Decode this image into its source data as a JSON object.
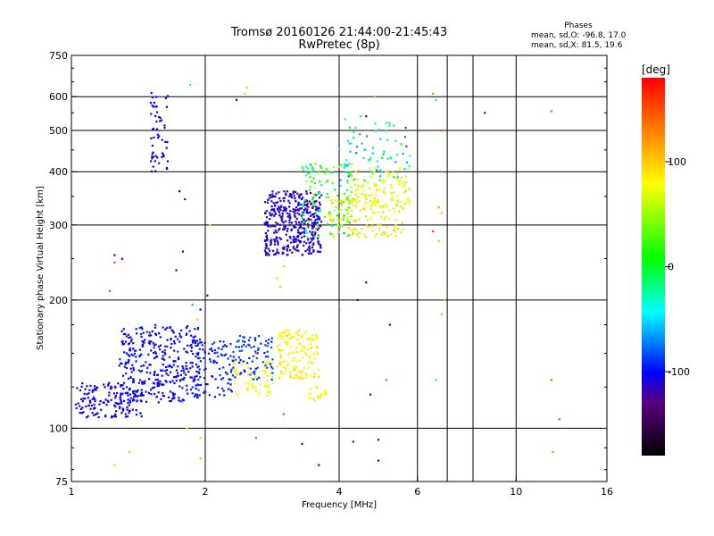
{
  "title_line1": "Tromsø 20160126 21:44:00-21:45:43",
  "title_line2": "RwPretec (8p)",
  "stats": {
    "header": "Phases",
    "line1": "mean, sd,O: -96.8, 17.0",
    "line2": "mean, sd,X:  81.5, 19.6"
  },
  "colorbar": {
    "label": "[deg]",
    "ticks": [
      {
        "value": 100,
        "label": "100"
      },
      {
        "value": 0,
        "label": "0"
      },
      {
        "value": -100,
        "label": "-100"
      }
    ],
    "range": [
      -180,
      180
    ]
  },
  "chart_data": {
    "type": "scatter",
    "title": "Tromsø 20160126 21:44:00-21:45:43",
    "subtitle": "RwPretec (8p)",
    "xlabel": "Frequency [MHz]",
    "ylabel": "Stationary phase Virtual Height [km]",
    "xscale": "log",
    "yscale": "log",
    "xlim": [
      1,
      16
    ],
    "ylim": [
      75,
      750
    ],
    "xticks": [
      {
        "value": 1,
        "label": "1"
      },
      {
        "value": 2,
        "label": "2"
      },
      {
        "value": 4,
        "label": "4"
      },
      {
        "value": 6,
        "label": "6"
      },
      {
        "value": 10,
        "label": "10"
      },
      {
        "value": 16,
        "label": "16"
      }
    ],
    "yticks": [
      {
        "value": 75,
        "label": "75"
      },
      {
        "value": 100,
        "label": "100"
      },
      {
        "value": 200,
        "label": "200"
      },
      {
        "value": 300,
        "label": "300"
      },
      {
        "value": 400,
        "label": "400"
      },
      {
        "value": 500,
        "label": "500"
      },
      {
        "value": 600,
        "label": "600"
      },
      {
        "value": 750,
        "label": "750"
      }
    ],
    "grid_x": [
      2,
      4,
      6,
      7,
      8,
      10
    ],
    "grid_y": [
      100,
      200,
      300,
      400,
      500,
      600
    ],
    "color_variable": "phase [deg]",
    "clusters": [
      {
        "xmin": 1.02,
        "xmax": 1.45,
        "ymin": 106,
        "ymax": 128,
        "phase": -105,
        "spread": 12,
        "count": 160
      },
      {
        "xmin": 1.28,
        "xmax": 1.95,
        "ymin": 115,
        "ymax": 175,
        "phase": -100,
        "spread": 12,
        "count": 360
      },
      {
        "xmin": 1.9,
        "xmax": 2.3,
        "ymin": 118,
        "ymax": 160,
        "phase": -95,
        "spread": 12,
        "count": 90
      },
      {
        "xmin": 2.3,
        "xmax": 2.85,
        "ymin": 118,
        "ymax": 145,
        "phase": 75,
        "spread": 18,
        "count": 60
      },
      {
        "xmin": 2.3,
        "xmax": 2.85,
        "ymin": 130,
        "ymax": 165,
        "phase": -90,
        "spread": 15,
        "count": 80
      },
      {
        "xmin": 2.9,
        "xmax": 3.6,
        "ymin": 130,
        "ymax": 170,
        "phase": 85,
        "spread": 12,
        "count": 150
      },
      {
        "xmin": 3.4,
        "xmax": 3.75,
        "ymin": 115,
        "ymax": 125,
        "phase": 80,
        "spread": 15,
        "count": 20
      },
      {
        "xmin": 1.5,
        "xmax": 1.65,
        "ymin": 400,
        "ymax": 620,
        "phase": -105,
        "spread": 10,
        "count": 55
      },
      {
        "xmin": 2.72,
        "xmax": 3.65,
        "ymin": 255,
        "ymax": 360,
        "phase": -112,
        "spread": 12,
        "count": 420
      },
      {
        "xmin": 3.3,
        "xmax": 4.3,
        "ymin": 280,
        "ymax": 420,
        "phase": 5,
        "spread": 70,
        "count": 140
      },
      {
        "xmin": 3.8,
        "xmax": 5.6,
        "ymin": 280,
        "ymax": 345,
        "phase": 90,
        "spread": 12,
        "count": 120
      },
      {
        "xmin": 4.2,
        "xmax": 5.8,
        "ymin": 330,
        "ymax": 410,
        "phase": 75,
        "spread": 25,
        "count": 120
      },
      {
        "xmin": 4.0,
        "xmax": 5.8,
        "ymin": 380,
        "ymax": 540,
        "phase": -40,
        "spread": 60,
        "count": 70
      }
    ],
    "scattered_points": [
      {
        "x": 2.35,
        "y": 590,
        "phase": -110
      },
      {
        "x": 2.45,
        "y": 610,
        "phase": 95
      },
      {
        "x": 2.48,
        "y": 630,
        "phase": 100
      },
      {
        "x": 1.85,
        "y": 640,
        "phase": -20
      },
      {
        "x": 6.5,
        "y": 610,
        "phase": 130
      },
      {
        "x": 6.6,
        "y": 590,
        "phase": -5
      },
      {
        "x": 8.5,
        "y": 550,
        "phase": -120
      },
      {
        "x": 12.0,
        "y": 555,
        "phase": 140
      },
      {
        "x": 6.8,
        "y": 500,
        "phase": 150
      },
      {
        "x": 6.7,
        "y": 330,
        "phase": 120
      },
      {
        "x": 6.8,
        "y": 320,
        "phase": 110
      },
      {
        "x": 6.5,
        "y": 290,
        "phase": 160
      },
      {
        "x": 6.7,
        "y": 275,
        "phase": 100
      },
      {
        "x": 6.9,
        "y": 200,
        "phase": 110
      },
      {
        "x": 6.8,
        "y": 185,
        "phase": 105
      },
      {
        "x": 6.6,
        "y": 130,
        "phase": -20
      },
      {
        "x": 12.0,
        "y": 130,
        "phase": 140
      },
      {
        "x": 12.5,
        "y": 105,
        "phase": 150
      },
      {
        "x": 12.1,
        "y": 88,
        "phase": 120
      },
      {
        "x": 1.25,
        "y": 255,
        "phase": -120
      },
      {
        "x": 1.3,
        "y": 250,
        "phase": -110
      },
      {
        "x": 1.25,
        "y": 245,
        "phase": 150
      },
      {
        "x": 1.22,
        "y": 210,
        "phase": 150
      },
      {
        "x": 1.75,
        "y": 360,
        "phase": -100
      },
      {
        "x": 1.8,
        "y": 345,
        "phase": -120
      },
      {
        "x": 1.78,
        "y": 260,
        "phase": -110
      },
      {
        "x": 1.72,
        "y": 235,
        "phase": -110
      },
      {
        "x": 2.05,
        "y": 300,
        "phase": 70
      },
      {
        "x": 1.87,
        "y": 195,
        "phase": -60
      },
      {
        "x": 1.95,
        "y": 190,
        "phase": -100
      },
      {
        "x": 1.92,
        "y": 180,
        "phase": 100
      },
      {
        "x": 2.02,
        "y": 205,
        "phase": -120
      },
      {
        "x": 1.82,
        "y": 100,
        "phase": 80
      },
      {
        "x": 1.95,
        "y": 95,
        "phase": 100
      },
      {
        "x": 1.95,
        "y": 85,
        "phase": 110
      },
      {
        "x": 1.25,
        "y": 82,
        "phase": 100
      },
      {
        "x": 1.35,
        "y": 88,
        "phase": 110
      },
      {
        "x": 2.9,
        "y": 225,
        "phase": 100
      },
      {
        "x": 2.95,
        "y": 215,
        "phase": 105
      },
      {
        "x": 3.0,
        "y": 240,
        "phase": 95
      },
      {
        "x": 2.6,
        "y": 150,
        "phase": 140
      },
      {
        "x": 3.0,
        "y": 108,
        "phase": 150
      },
      {
        "x": 2.6,
        "y": 95,
        "phase": 140
      },
      {
        "x": 3.3,
        "y": 92,
        "phase": -120
      },
      {
        "x": 3.6,
        "y": 82,
        "phase": -140
      },
      {
        "x": 4.0,
        "y": 190,
        "phase": 150
      },
      {
        "x": 4.4,
        "y": 200,
        "phase": -120
      },
      {
        "x": 4.6,
        "y": 220,
        "phase": -140
      },
      {
        "x": 4.7,
        "y": 120,
        "phase": -110
      },
      {
        "x": 4.3,
        "y": 93,
        "phase": -130
      },
      {
        "x": 4.9,
        "y": 94,
        "phase": -120
      },
      {
        "x": 4.9,
        "y": 84,
        "phase": -110
      },
      {
        "x": 5.2,
        "y": 175,
        "phase": -100
      },
      {
        "x": 5.1,
        "y": 130,
        "phase": 140
      },
      {
        "x": 4.8,
        "y": 600,
        "phase": 120
      },
      {
        "x": 4.6,
        "y": 540,
        "phase": -110
      }
    ]
  }
}
